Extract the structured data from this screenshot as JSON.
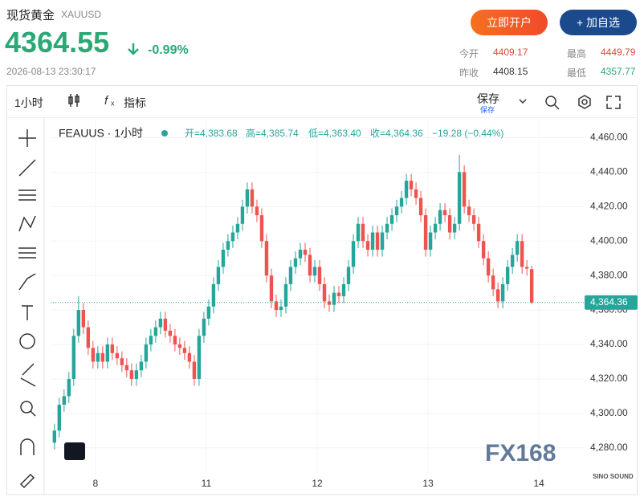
{
  "header": {
    "title": "现货黄金",
    "symbol": "XAUUSD",
    "price": "4364.55",
    "change": "-0.99%",
    "time": "2026-08-13 23:30:17",
    "open_account": "立即开户",
    "add_watch": "+ 加自选",
    "stats": [
      {
        "label": "今开",
        "value": "4409.17"
      },
      {
        "label": "最高",
        "value": "4449.79"
      },
      {
        "label": "昨收",
        "value": "4408.15"
      },
      {
        "label": "最低",
        "value": "4357.77"
      }
    ]
  },
  "toolbar": {
    "interval": "1小时",
    "indicators": "指标",
    "save": "保存",
    "save_sub": "保存"
  },
  "watermark": {
    "brand": "FX168",
    "sub": "SINO SOUND"
  },
  "chart_data": {
    "type": "candlestick",
    "legend": {
      "symbol": "FEAUUS · 1小时",
      "open": "开=4,383.68",
      "high": "高=4,385.74",
      "low": "低=4,363.40",
      "close": "收=4,364.36",
      "change": "−19.28 (−0.44%)"
    },
    "open": [
      4283,
      4290,
      4305,
      4310,
      4320,
      4345,
      4360,
      4350,
      4338,
      4330,
      4335,
      4330,
      4340,
      4335,
      4332,
      4328,
      4325,
      4320,
      4325,
      4330,
      4340,
      4345,
      4350,
      4355,
      4348,
      4345,
      4340,
      4338,
      4335,
      4330,
      4320,
      4345,
      4355,
      4362,
      4375,
      4385,
      4395,
      4400,
      4405,
      4410,
      4420,
      4430,
      4420,
      4415,
      4400,
      4380,
      4365,
      4360,
      4362,
      4375,
      4385,
      4390,
      4395,
      4392,
      4380,
      4385,
      4375,
      4365,
      4363,
      4370,
      4368,
      4375,
      4385,
      4400,
      4410,
      4400,
      4395,
      4405,
      4395,
      4405,
      4410,
      4415,
      4420,
      4425,
      4435,
      4430,
      4425,
      4415,
      4395,
      4405,
      4410,
      4418,
      4415,
      4405,
      4410,
      4440,
      4420,
      4415,
      4410,
      4400,
      4390,
      4380,
      4372,
      4365,
      4375,
      4385,
      4392,
      4400,
      4385,
      4383.68
    ],
    "high": [
      4294,
      4309,
      4314,
      4324,
      4349,
      4368,
      4364,
      4354,
      4342,
      4339,
      4339,
      4344,
      4344,
      4339,
      4336,
      4332,
      4329,
      4329,
      4334,
      4344,
      4349,
      4354,
      4359,
      4359,
      4352,
      4349,
      4344,
      4342,
      4339,
      4334,
      4349,
      4359,
      4366,
      4379,
      4389,
      4399,
      4404,
      4409,
      4414,
      4424,
      4434,
      4434,
      4424,
      4419,
      4404,
      4384,
      4369,
      4366,
      4379,
      4389,
      4394,
      4399,
      4399,
      4396,
      4389,
      4389,
      4379,
      4369,
      4374,
      4374,
      4379,
      4389,
      4404,
      4414,
      4414,
      4404,
      4409,
      4409,
      4409,
      4414,
      4419,
      4424,
      4429,
      4439,
      4439,
      4434,
      4429,
      4419,
      4409,
      4414,
      4422,
      4422,
      4419,
      4414,
      4450,
      4444,
      4424,
      4419,
      4414,
      4404,
      4394,
      4384,
      4376,
      4379,
      4389,
      4396,
      4404,
      4404,
      4389,
      4385.74
    ],
    "low": [
      4279,
      4286,
      4301,
      4306,
      4316,
      4341,
      4346,
      4334,
      4326,
      4326,
      4326,
      4326,
      4331,
      4328,
      4324,
      4321,
      4316,
      4316,
      4321,
      4326,
      4336,
      4341,
      4346,
      4344,
      4341,
      4336,
      4334,
      4331,
      4326,
      4316,
      4316,
      4341,
      4351,
      4358,
      4371,
      4381,
      4391,
      4396,
      4401,
      4406,
      4416,
      4416,
      4411,
      4396,
      4376,
      4361,
      4356,
      4356,
      4358,
      4371,
      4381,
      4386,
      4388,
      4376,
      4376,
      4371,
      4361,
      4359,
      4359,
      4364,
      4364,
      4371,
      4381,
      4396,
      4396,
      4391,
      4391,
      4391,
      4391,
      4401,
      4406,
      4411,
      4416,
      4421,
      4426,
      4421,
      4411,
      4391,
      4391,
      4401,
      4406,
      4411,
      4401,
      4401,
      4406,
      4416,
      4411,
      4406,
      4396,
      4386,
      4376,
      4368,
      4361,
      4361,
      4371,
      4381,
      4388,
      4381,
      4380,
      4363.4
    ],
    "close": [
      4290,
      4305,
      4310,
      4320,
      4345,
      4360,
      4350,
      4338,
      4330,
      4335,
      4330,
      4340,
      4335,
      4332,
      4328,
      4325,
      4320,
      4325,
      4330,
      4340,
      4345,
      4350,
      4355,
      4348,
      4345,
      4340,
      4338,
      4335,
      4330,
      4320,
      4345,
      4355,
      4362,
      4375,
      4385,
      4395,
      4400,
      4405,
      4410,
      4420,
      4430,
      4420,
      4415,
      4400,
      4380,
      4365,
      4360,
      4362,
      4375,
      4385,
      4390,
      4395,
      4392,
      4380,
      4385,
      4375,
      4365,
      4363,
      4370,
      4368,
      4375,
      4385,
      4400,
      4410,
      4400,
      4395,
      4405,
      4395,
      4405,
      4410,
      4415,
      4420,
      4425,
      4435,
      4430,
      4425,
      4415,
      4395,
      4405,
      4410,
      4418,
      4415,
      4405,
      4410,
      4440,
      4420,
      4415,
      4410,
      4400,
      4390,
      4380,
      4372,
      4365,
      4375,
      4385,
      4392,
      4400,
      4385,
      4384,
      4364.36
    ],
    "up_color": "#26a69a",
    "down_color": "#ef5350",
    "xlim": [
      -0.8,
      109.8
    ],
    "xticks": [
      {
        "value": 8.5,
        "label": "8"
      },
      {
        "value": 31.5,
        "label": "11"
      },
      {
        "value": 54.5,
        "label": "12"
      },
      {
        "value": 77.5,
        "label": "13"
      },
      {
        "value": 100.5,
        "label": "14"
      }
    ],
    "ylim": [
      4265,
      4470
    ],
    "yticks": [
      {
        "value": 4280,
        "label": "4,280.00"
      },
      {
        "value": 4300,
        "label": "4,300.00"
      },
      {
        "value": 4320,
        "label": "4,320.00"
      },
      {
        "value": 4340,
        "label": "4,340.00"
      },
      {
        "value": 4360,
        "label": "4,360.00"
      },
      {
        "value": 4380,
        "label": "4,380.00"
      },
      {
        "value": 4400,
        "label": "4,400.00"
      },
      {
        "value": 4420,
        "label": "4,420.00"
      },
      {
        "value": 4440,
        "label": "4,440.00"
      },
      {
        "value": 4460,
        "label": "4,460.00"
      }
    ],
    "last_price": {
      "value": 4364.36,
      "label": "4,364.36"
    },
    "grid": true
  }
}
